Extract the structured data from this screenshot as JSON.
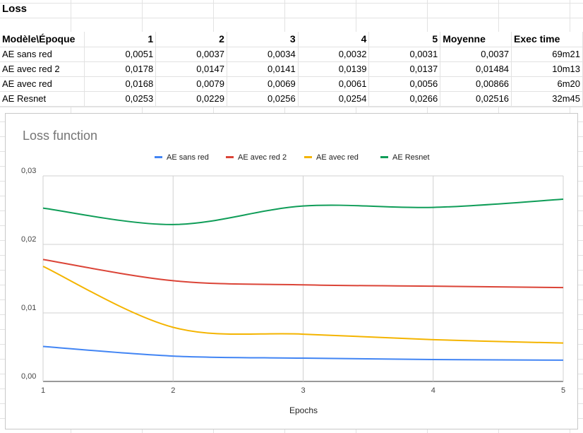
{
  "sheet": {
    "title": "Loss"
  },
  "table": {
    "headers": [
      "Modèle\\Époque",
      "1",
      "2",
      "3",
      "4",
      "5",
      "Moyenne",
      "Exec time"
    ],
    "rows": [
      [
        "AE sans red",
        "0,0051",
        "0,0037",
        "0,0034",
        "0,0032",
        "0,0031",
        "0,0037",
        "69m21"
      ],
      [
        "AE avec red 2",
        "0,0178",
        "0,0147",
        "0,0141",
        "0,0139",
        "0,0137",
        "0,01484",
        "10m13"
      ],
      [
        "AE avec red",
        "0,0168",
        "0,0079",
        "0,0069",
        "0,0061",
        "0,0056",
        "0,00866",
        "6m20"
      ],
      [
        "AE Resnet",
        "0,0253",
        "0,0229",
        "0,0256",
        "0,0254",
        "0,0266",
        "0,02516",
        "32m45"
      ]
    ]
  },
  "chart_data": {
    "type": "line",
    "title": "Loss function",
    "xlabel": "Epochs",
    "ylabel": "",
    "x": [
      1,
      2,
      3,
      4,
      5
    ],
    "x_tick_labels": [
      "1",
      "2",
      "3",
      "4",
      "5"
    ],
    "y_tick_labels": [
      "0,00",
      "0,01",
      "0,02",
      "0,03"
    ],
    "ylim": [
      0,
      0.03
    ],
    "grid": true,
    "legend_position": "top",
    "series": [
      {
        "name": "AE sans red",
        "color": "#4285f4",
        "values": [
          0.0051,
          0.0037,
          0.0034,
          0.0032,
          0.0031
        ]
      },
      {
        "name": "AE avec red 2",
        "color": "#db4437",
        "values": [
          0.0178,
          0.0147,
          0.0141,
          0.0139,
          0.0137
        ]
      },
      {
        "name": "AE avec red",
        "color": "#f4b400",
        "values": [
          0.0168,
          0.0079,
          0.0069,
          0.0061,
          0.0056
        ]
      },
      {
        "name": "AE Resnet",
        "color": "#0f9d58",
        "values": [
          0.0253,
          0.0229,
          0.0256,
          0.0254,
          0.0266
        ]
      }
    ]
  }
}
